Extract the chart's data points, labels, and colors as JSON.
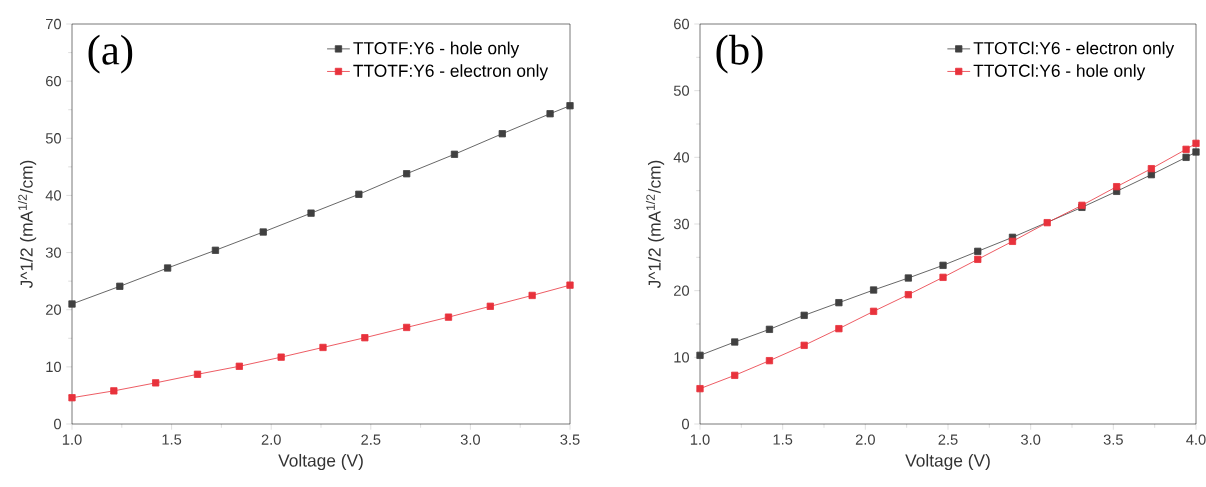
{
  "chart_data": [
    {
      "type": "line",
      "xlabel": "Voltage (V)",
      "ylabel": "J^1/2 (mA$^{1/2}$/cm)",
      "annotations": [
        "(a)"
      ],
      "x": [
        1.0,
        1.24,
        1.48,
        1.72,
        1.96,
        2.2,
        2.44,
        2.68,
        2.92,
        3.16,
        3.4,
        3.5
      ],
      "series": [
        {
          "name": "TTOTF:Y6 - hole only",
          "color": "#404040",
          "values": [
            21,
            24.1,
            27.3,
            30.4,
            33.6,
            36.9,
            40.2,
            43.8,
            47.2,
            50.8,
            54.3,
            55.7
          ]
        },
        {
          "name": "TTOTF:Y6 - electron only",
          "color": "#e8323c",
          "x": [
            1.0,
            1.21,
            1.42,
            1.63,
            1.84,
            2.05,
            2.26,
            2.47,
            2.68,
            2.89,
            3.1,
            3.31,
            3.5
          ],
          "values": [
            4.6,
            5.8,
            7.2,
            8.7,
            10.1,
            11.7,
            13.4,
            15.1,
            16.9,
            18.7,
            20.6,
            22.5,
            24.3
          ]
        }
      ],
      "xlim": [
        1.0,
        3.5
      ],
      "xticks": [
        {
          "value": 1.0,
          "label": "1.0"
        },
        {
          "value": 1.5,
          "label": "1.5"
        },
        {
          "value": 2.0,
          "label": "2.0"
        },
        {
          "value": 2.5,
          "label": "2.5"
        },
        {
          "value": 3.0,
          "label": "3.0"
        },
        {
          "value": 3.5,
          "label": "3.5"
        }
      ],
      "ylim": [
        0,
        70
      ],
      "yticks": [
        0,
        10,
        20,
        30,
        40,
        50,
        60,
        70
      ],
      "legend": "top right",
      "marker": "square",
      "line_style": "solid",
      "grid": false
    },
    {
      "type": "line",
      "xlabel": "Voltage (V)",
      "ylabel": "J^1/2 (mA$^{1/2}$/cm)",
      "annotations": [
        "(b)"
      ],
      "x": [
        1.0,
        1.21,
        1.42,
        1.63,
        1.84,
        2.05,
        2.26,
        2.47,
        2.68,
        2.89,
        3.1,
        3.31,
        3.52,
        3.73,
        3.94,
        4.0
      ],
      "series": [
        {
          "name": "TTOTCl:Y6 - electron only",
          "color": "#404040",
          "values": [
            10.3,
            12.3,
            14.2,
            16.3,
            18.2,
            20.1,
            21.9,
            23.8,
            25.9,
            28.0,
            null,
            32.5,
            34.9,
            37.4,
            40.0,
            40.8
          ]
        },
        {
          "name": "TTOTCl:Y6 - hole only",
          "color": "#e8323c",
          "values": [
            5.3,
            7.3,
            9.5,
            11.8,
            14.3,
            16.9,
            19.4,
            22.0,
            24.7,
            27.4,
            30.2,
            32.8,
            35.6,
            38.3,
            41.2,
            42.1
          ]
        }
      ],
      "xlim": [
        1.0,
        4.0
      ],
      "xticks": [
        {
          "value": 1.0,
          "label": "1.0"
        },
        {
          "value": 1.5,
          "label": "1.5"
        },
        {
          "value": 2.0,
          "label": "2.0"
        },
        {
          "value": 2.5,
          "label": "2.5"
        },
        {
          "value": 3.0,
          "label": "3.0"
        },
        {
          "value": 3.5,
          "label": "3.5"
        },
        {
          "value": 4.0,
          "label": "4.0"
        }
      ],
      "ylim": [
        0,
        60
      ],
      "yticks": [
        0,
        10,
        20,
        30,
        40,
        50,
        60
      ],
      "legend": "top right",
      "marker": "square",
      "line_style": "solid",
      "grid": false
    }
  ]
}
